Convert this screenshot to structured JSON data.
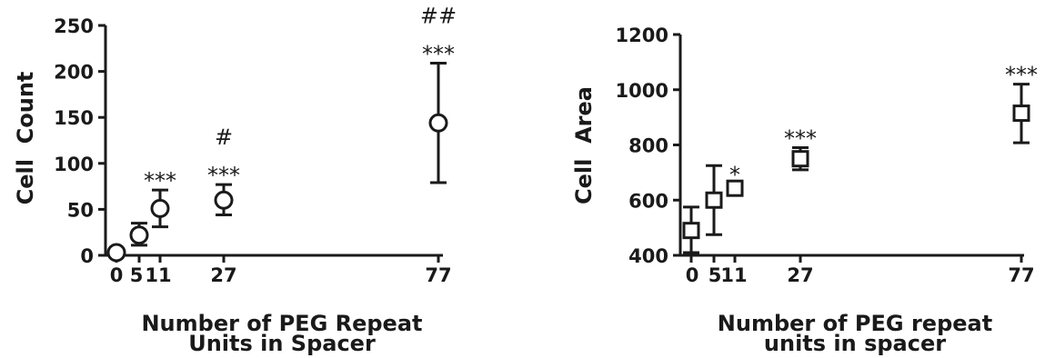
{
  "chart_data": [
    {
      "type": "scatter",
      "marker": "circle",
      "ylabel": "Cell  Count",
      "xlabel_lines": [
        "Number of PEG Repeat",
        "Units in Spacer"
      ],
      "ylim": [
        0,
        250
      ],
      "yticks": [
        0,
        50,
        100,
        150,
        200,
        250
      ],
      "xticks": [
        {
          "value": 0,
          "label": "0"
        },
        {
          "value": 5,
          "label": "5"
        },
        {
          "value": 11,
          "label": "11"
        },
        {
          "value": 27,
          "label": "27"
        },
        {
          "value": 77,
          "label": "77"
        }
      ],
      "points": [
        {
          "x": 0,
          "y": 3,
          "err_low": 0,
          "err_high": 6,
          "sig": []
        },
        {
          "x": 5,
          "y": 22,
          "err_low": 11,
          "err_high": 35,
          "sig": []
        },
        {
          "x": 11,
          "y": 51,
          "err_low": 31,
          "err_high": 71,
          "sig": [
            "***"
          ]
        },
        {
          "x": 27,
          "y": 60,
          "err_low": 44,
          "err_high": 77,
          "sig": [
            "#",
            "***"
          ]
        },
        {
          "x": 77,
          "y": 144,
          "err_low": 79,
          "err_high": 209,
          "sig": [
            "##",
            "***"
          ]
        }
      ]
    },
    {
      "type": "scatter",
      "marker": "square",
      "ylabel": "Cell  Area",
      "xlabel_lines": [
        "Number of PEG repeat",
        "units in spacer"
      ],
      "ylim": [
        400,
        1200
      ],
      "yticks": [
        400,
        600,
        800,
        1000,
        1200
      ],
      "xticks": [
        {
          "value": 0,
          "label": "0"
        },
        {
          "value": 5,
          "label": "5"
        },
        {
          "value": 11,
          "label": "11"
        },
        {
          "value": 27,
          "label": "27"
        },
        {
          "value": 77,
          "label": "77"
        }
      ],
      "points": [
        {
          "x": 0,
          "y": 490,
          "err_low": 410,
          "err_high": 575,
          "sig": []
        },
        {
          "x": 5,
          "y": 600,
          "err_low": 475,
          "err_high": 725,
          "sig": []
        },
        {
          "x": 11,
          "y": 643,
          "err_low": 628,
          "err_high": 658,
          "sig": [
            "*"
          ]
        },
        {
          "x": 27,
          "y": 750,
          "err_low": 710,
          "err_high": 790,
          "sig": [
            "***"
          ]
        },
        {
          "x": 77,
          "y": 915,
          "err_low": 808,
          "err_high": 1020,
          "sig": [
            "***"
          ]
        }
      ]
    }
  ]
}
